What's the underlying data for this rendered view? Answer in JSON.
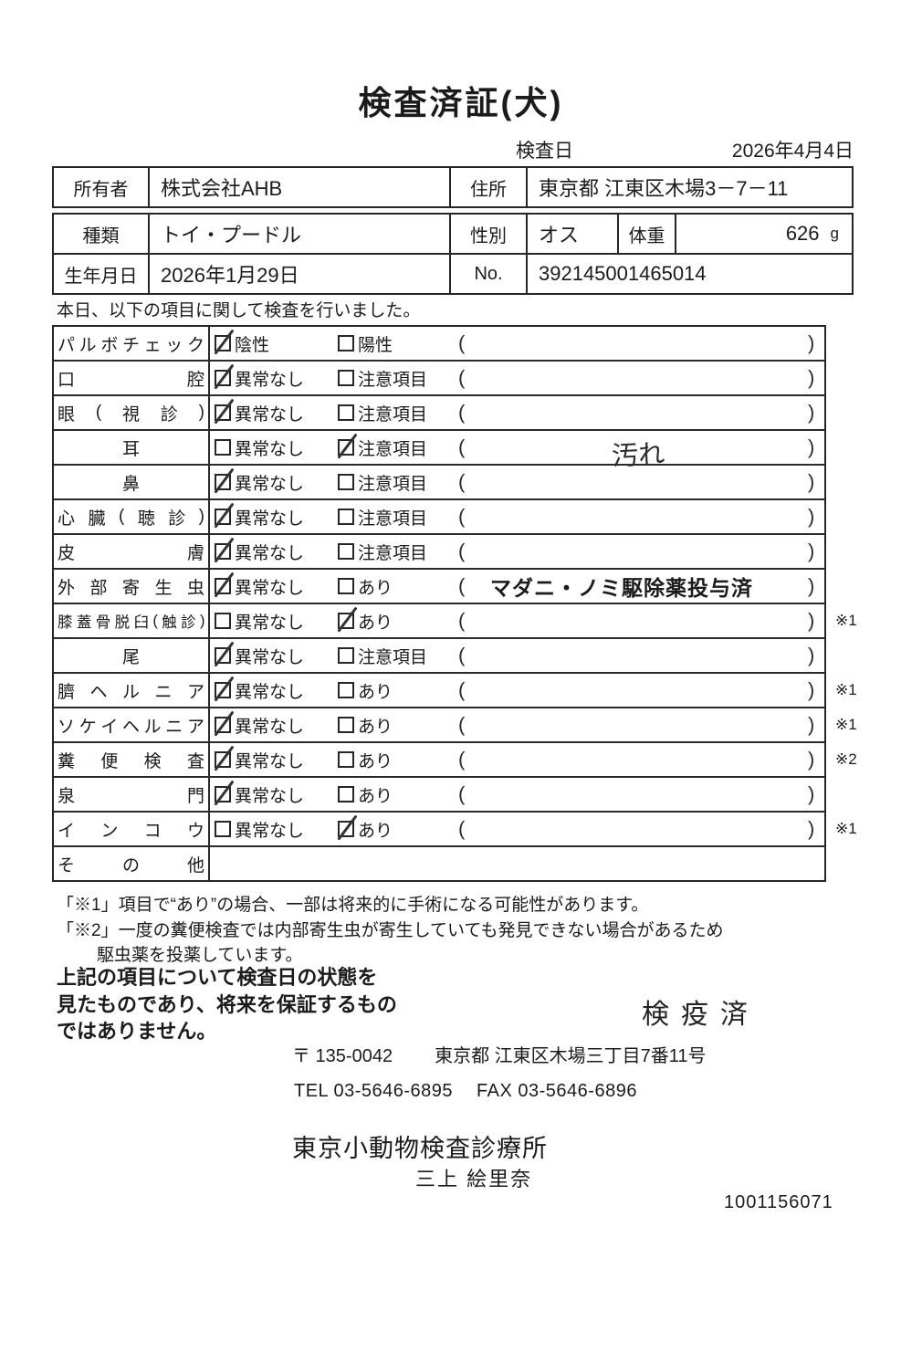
{
  "page": {
    "title": "検査済証(犬)",
    "inspection_date_label": "検査日",
    "inspection_date": "2026年4月4日",
    "intro": "本日、以下の項目に関して検査を行いました。"
  },
  "owner_table": {
    "owner_label": "所有者",
    "owner": "株式会社AHB",
    "address_label": "住所",
    "address": "東京都 江東区木場3－7－11"
  },
  "pet_table": {
    "breed_label": "種類",
    "breed": "トイ・プードル",
    "sex_label": "性別",
    "sex": "オス",
    "weight_label": "体重",
    "weight": "626",
    "weight_unit": "g",
    "birth_label": "生年月日",
    "birth": "2026年1月29日",
    "no_label": "No.",
    "no": "392145001465014"
  },
  "checklist": {
    "paren_open": "(",
    "paren_close": ")",
    "rows": [
      {
        "label": "パルボチェック",
        "options": [
          {
            "text": "陰性",
            "checked": true
          },
          {
            "text": "陽性",
            "checked": false
          }
        ],
        "remark": "",
        "remark_type": "",
        "note": ""
      },
      {
        "label": "口腔",
        "options": [
          {
            "text": "異常なし",
            "checked": true
          },
          {
            "text": "注意項目",
            "checked": false
          }
        ],
        "remark": "",
        "remark_type": "",
        "note": ""
      },
      {
        "label": "眼(視診)",
        "options": [
          {
            "text": "異常なし",
            "checked": true
          },
          {
            "text": "注意項目",
            "checked": false
          }
        ],
        "remark": "",
        "remark_type": "",
        "note": ""
      },
      {
        "label": "耳",
        "options": [
          {
            "text": "異常なし",
            "checked": false
          },
          {
            "text": "注意項目",
            "checked": true
          }
        ],
        "remark": "汚れ",
        "remark_type": "handwritten",
        "note": ""
      },
      {
        "label": "鼻",
        "options": [
          {
            "text": "異常なし",
            "checked": true
          },
          {
            "text": "注意項目",
            "checked": false
          }
        ],
        "remark": "",
        "remark_type": "",
        "note": ""
      },
      {
        "label": "心臓(聴診)",
        "options": [
          {
            "text": "異常なし",
            "checked": true
          },
          {
            "text": "注意項目",
            "checked": false
          }
        ],
        "remark": "",
        "remark_type": "",
        "note": ""
      },
      {
        "label": "皮膚",
        "options": [
          {
            "text": "異常なし",
            "checked": true
          },
          {
            "text": "注意項目",
            "checked": false
          }
        ],
        "remark": "",
        "remark_type": "",
        "note": ""
      },
      {
        "label": "外部寄生虫",
        "options": [
          {
            "text": "異常なし",
            "checked": true
          },
          {
            "text": "あり",
            "checked": false
          }
        ],
        "remark": "マダニ・ノミ駆除薬投与済",
        "remark_type": "printed",
        "note": ""
      },
      {
        "label": "膝蓋骨脱臼(触診)",
        "options": [
          {
            "text": "異常なし",
            "checked": false
          },
          {
            "text": "あり",
            "checked": true
          }
        ],
        "remark": "",
        "remark_type": "",
        "note": "※1"
      },
      {
        "label": "尾",
        "options": [
          {
            "text": "異常なし",
            "checked": true
          },
          {
            "text": "注意項目",
            "checked": false
          }
        ],
        "remark": "",
        "remark_type": "",
        "note": ""
      },
      {
        "label": "臍ヘルニア",
        "options": [
          {
            "text": "異常なし",
            "checked": true
          },
          {
            "text": "あり",
            "checked": false
          }
        ],
        "remark": "",
        "remark_type": "",
        "note": "※1"
      },
      {
        "label": "ソケイヘルニア",
        "options": [
          {
            "text": "異常なし",
            "checked": true
          },
          {
            "text": "あり",
            "checked": false
          }
        ],
        "remark": "",
        "remark_type": "",
        "note": "※1"
      },
      {
        "label": "糞便検査",
        "options": [
          {
            "text": "異常なし",
            "checked": true
          },
          {
            "text": "あり",
            "checked": false
          }
        ],
        "remark": "",
        "remark_type": "",
        "note": "※2"
      },
      {
        "label": "泉門",
        "options": [
          {
            "text": "異常なし",
            "checked": true
          },
          {
            "text": "あり",
            "checked": false
          }
        ],
        "remark": "",
        "remark_type": "",
        "note": ""
      },
      {
        "label": "インコウ",
        "options": [
          {
            "text": "異常なし",
            "checked": false
          },
          {
            "text": "あり",
            "checked": true
          }
        ],
        "remark": "",
        "remark_type": "",
        "note": "※1"
      },
      {
        "label": "その他",
        "options": [],
        "remark": "",
        "remark_type": "",
        "note": ""
      }
    ]
  },
  "footnotes": {
    "line1": "「※1」項目で“あり”の場合、一部は将来的に手術になる可能性があります。",
    "line2": "「※2」一度の糞便検査では内部寄生虫が寄生していても発見できない場合があるため",
    "line3": "駆虫薬を投薬しています。"
  },
  "disclaimer": {
    "line1": "上記の項目について検査日の状態を",
    "line2": "見たものであり、将来を保証するもの",
    "line3": "ではありません。"
  },
  "stamp": "検疫済",
  "clinic": {
    "postal": "〒 135-0042",
    "address": "東京都 江東区木場三丁目7番11号",
    "tel": "TEL 03-5646-6895",
    "fax": "FAX 03-5646-6896",
    "name": "東京小動物検査診療所",
    "veterinarian": "三上 絵里奈",
    "doc_number": "1001156071"
  }
}
